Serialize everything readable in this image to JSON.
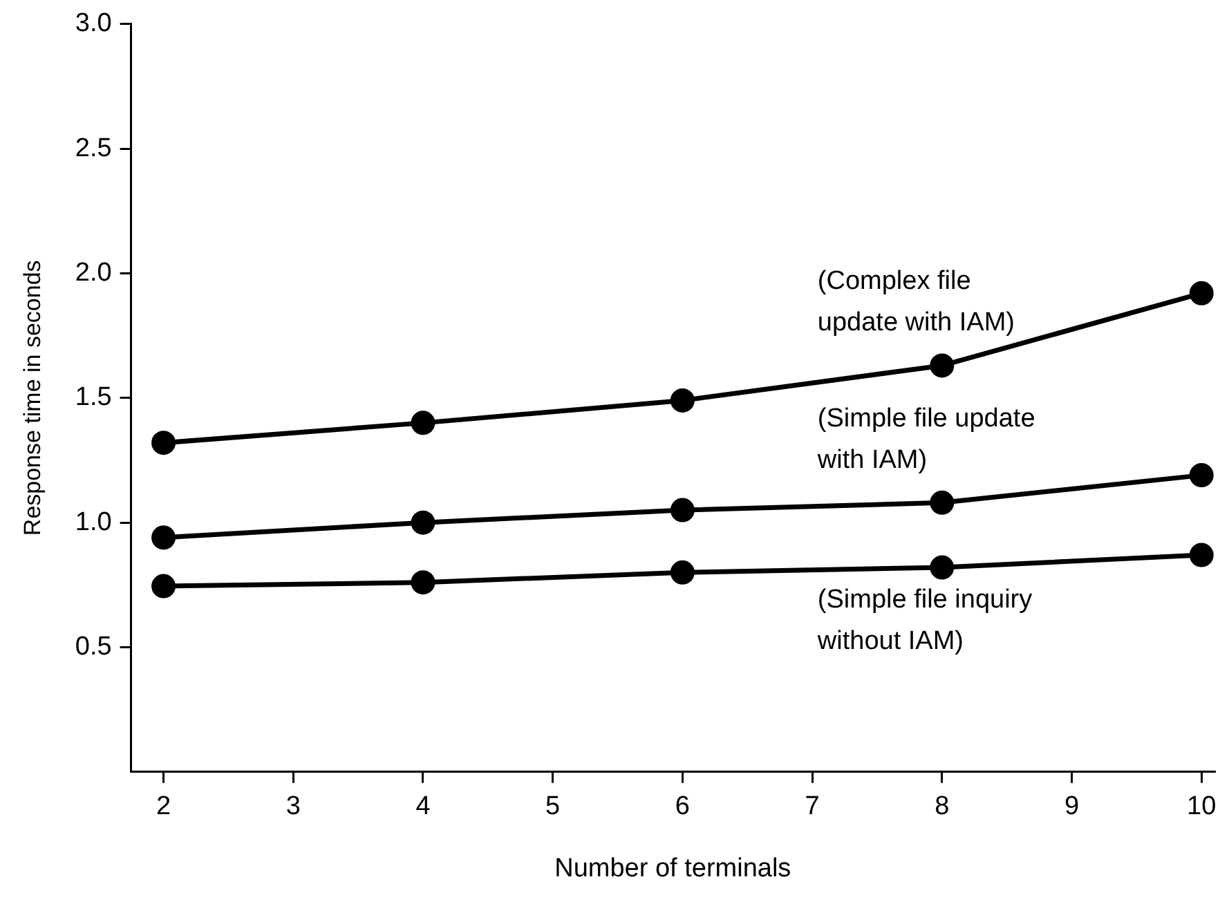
{
  "chart_data": {
    "type": "line",
    "xlabel": "Number of terminals",
    "ylabel": "Response time in seconds",
    "x": [
      2,
      4,
      6,
      8,
      10
    ],
    "series": [
      {
        "name": "(Complex file update with IAM)",
        "color": "#000000",
        "values": [
          1.32,
          1.4,
          1.49,
          1.63,
          1.92
        ]
      },
      {
        "name": "(Simple file update with IAM)",
        "color": "#000000",
        "values": [
          0.94,
          1.0,
          1.05,
          1.08,
          1.19
        ]
      },
      {
        "name": "(Simple file inquiry without IAM)",
        "color": "#000000",
        "values": [
          0.745,
          0.76,
          0.8,
          0.82,
          0.87
        ]
      }
    ],
    "xlim": [
      1.75,
      10.1
    ],
    "xticks": [
      2,
      3,
      4,
      5,
      6,
      7,
      8,
      9,
      10
    ],
    "ylim": [
      0,
      3
    ],
    "yticks": [
      0.5,
      {
        "value": 1,
        "label": "1.0"
      },
      1.5,
      {
        "value": 2,
        "label": "2.0"
      },
      2.5,
      {
        "value": 3,
        "label": "3.0"
      }
    ],
    "grid": false,
    "legend": false,
    "marker": "circle",
    "line_style": "solid"
  }
}
